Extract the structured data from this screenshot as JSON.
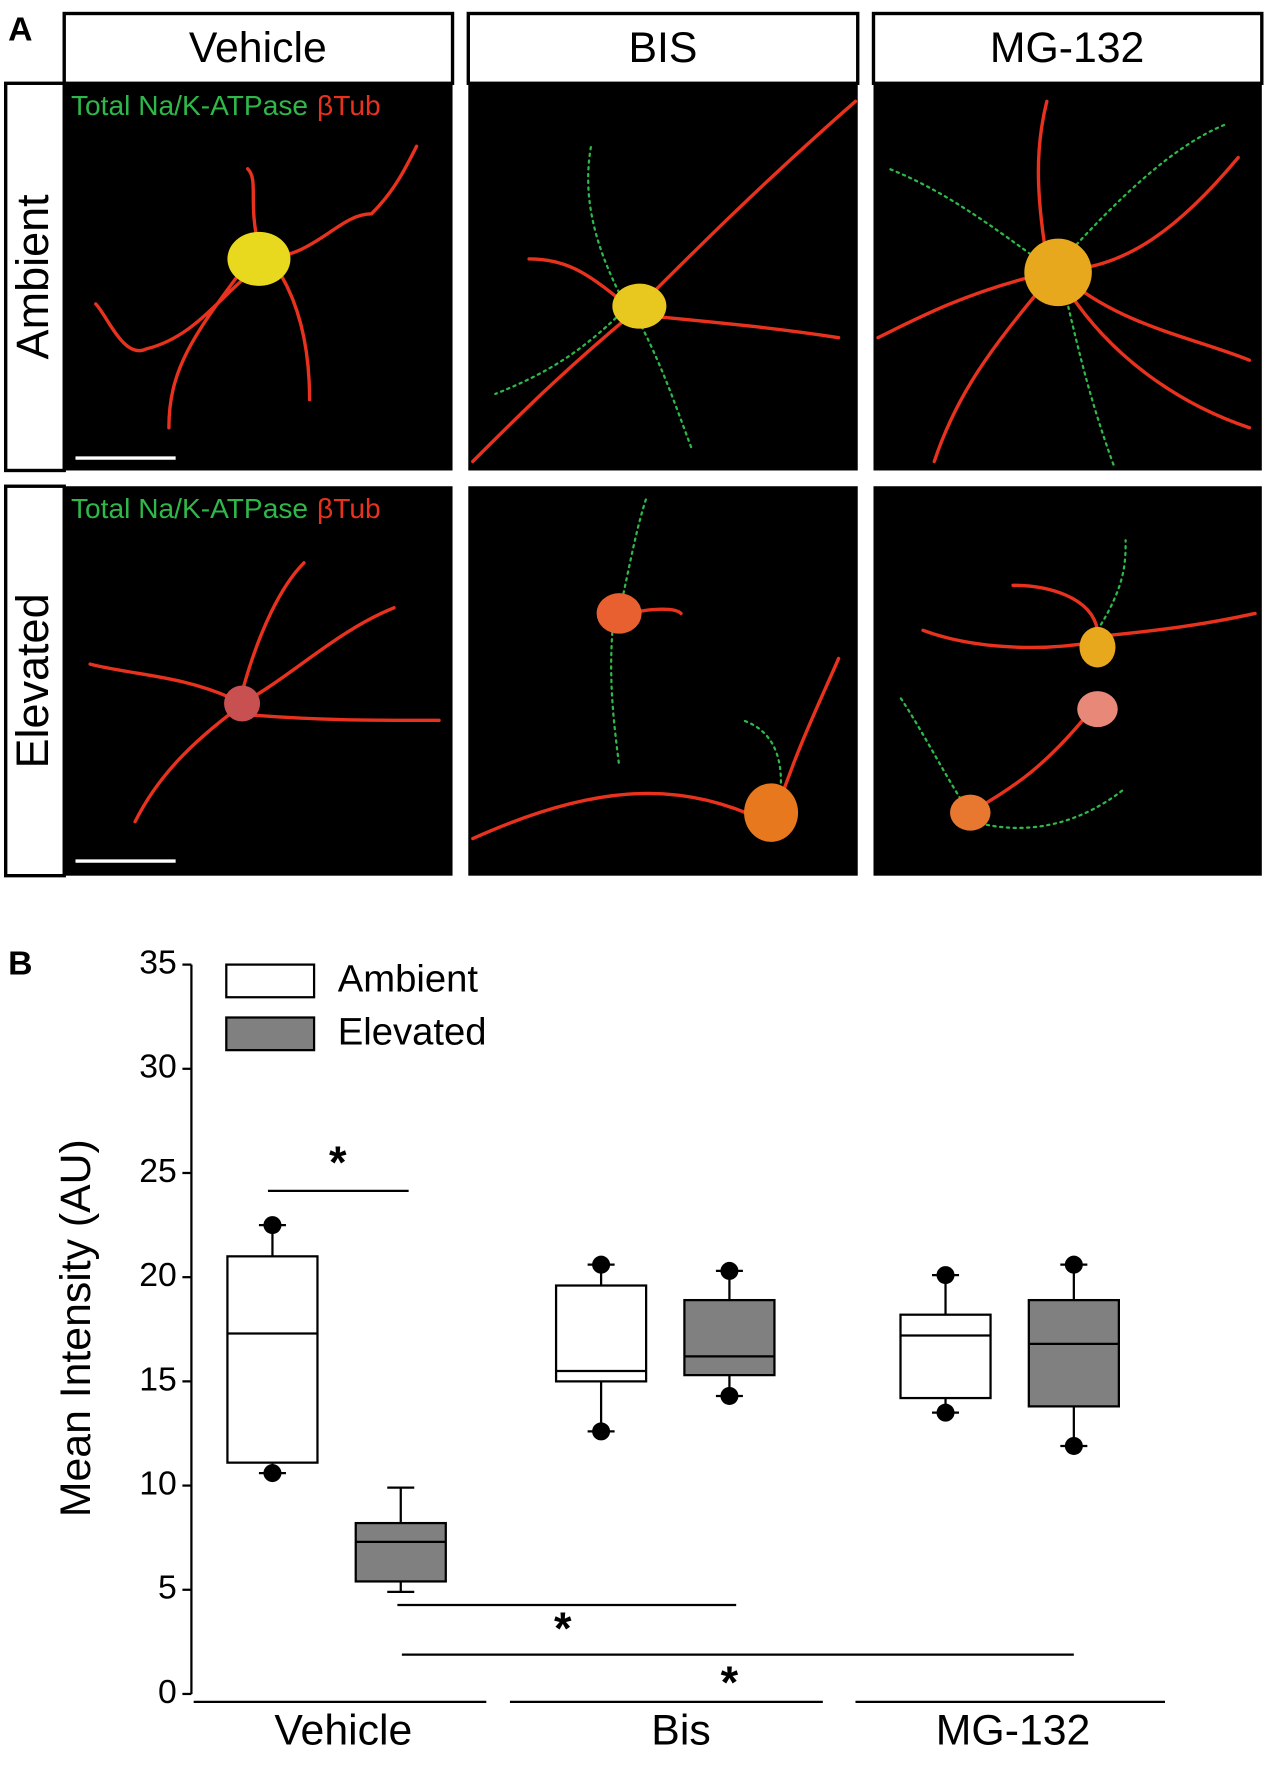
{
  "panel_a": {
    "label": "A",
    "columns": [
      "Vehicle",
      "BIS",
      "MG-132"
    ],
    "rows": [
      "Ambient",
      "Elevated"
    ],
    "stain_green": "Total Na/K-ATPase",
    "stain_red": "βTub"
  },
  "chart_data": {
    "type": "box",
    "panel_label": "B",
    "ylabel": "Mean Intensity (AU)",
    "categories": [
      "Vehicle",
      "Bis",
      "MG-132"
    ],
    "ylim": [
      0,
      35
    ],
    "yticks": [
      0,
      5,
      10,
      15,
      20,
      25,
      30,
      35
    ],
    "legend": "upper left",
    "series": [
      {
        "name": "Ambient",
        "color": "#ffffff",
        "whisker_dots": [
          true,
          true,
          true
        ],
        "boxes": [
          {
            "whislo": 10.6,
            "q1": 11.1,
            "med": 17.3,
            "q3": 21.0,
            "whishi": 22.5
          },
          {
            "whislo": 12.6,
            "q1": 15.0,
            "med": 15.5,
            "q3": 19.6,
            "whishi": 20.6
          },
          {
            "whislo": 13.5,
            "q1": 14.2,
            "med": 17.2,
            "q3": 18.2,
            "whishi": 20.1
          }
        ]
      },
      {
        "name": "Elevated",
        "color": "#808080",
        "whisker_dots": [
          false,
          true,
          true
        ],
        "boxes": [
          {
            "whislo": 4.9,
            "q1": 5.4,
            "med": 7.3,
            "q3": 8.2,
            "whishi": 9.9
          },
          {
            "whislo": 14.3,
            "q1": 15.3,
            "med": 16.2,
            "q3": 18.9,
            "whishi": 20.3
          },
          {
            "whislo": 11.9,
            "q1": 13.8,
            "med": 16.8,
            "q3": 18.9,
            "whishi": 20.6
          }
        ]
      }
    ],
    "annotations": [
      {
        "text": "*"
      },
      {
        "text": "*"
      },
      {
        "text": "*"
      }
    ]
  }
}
